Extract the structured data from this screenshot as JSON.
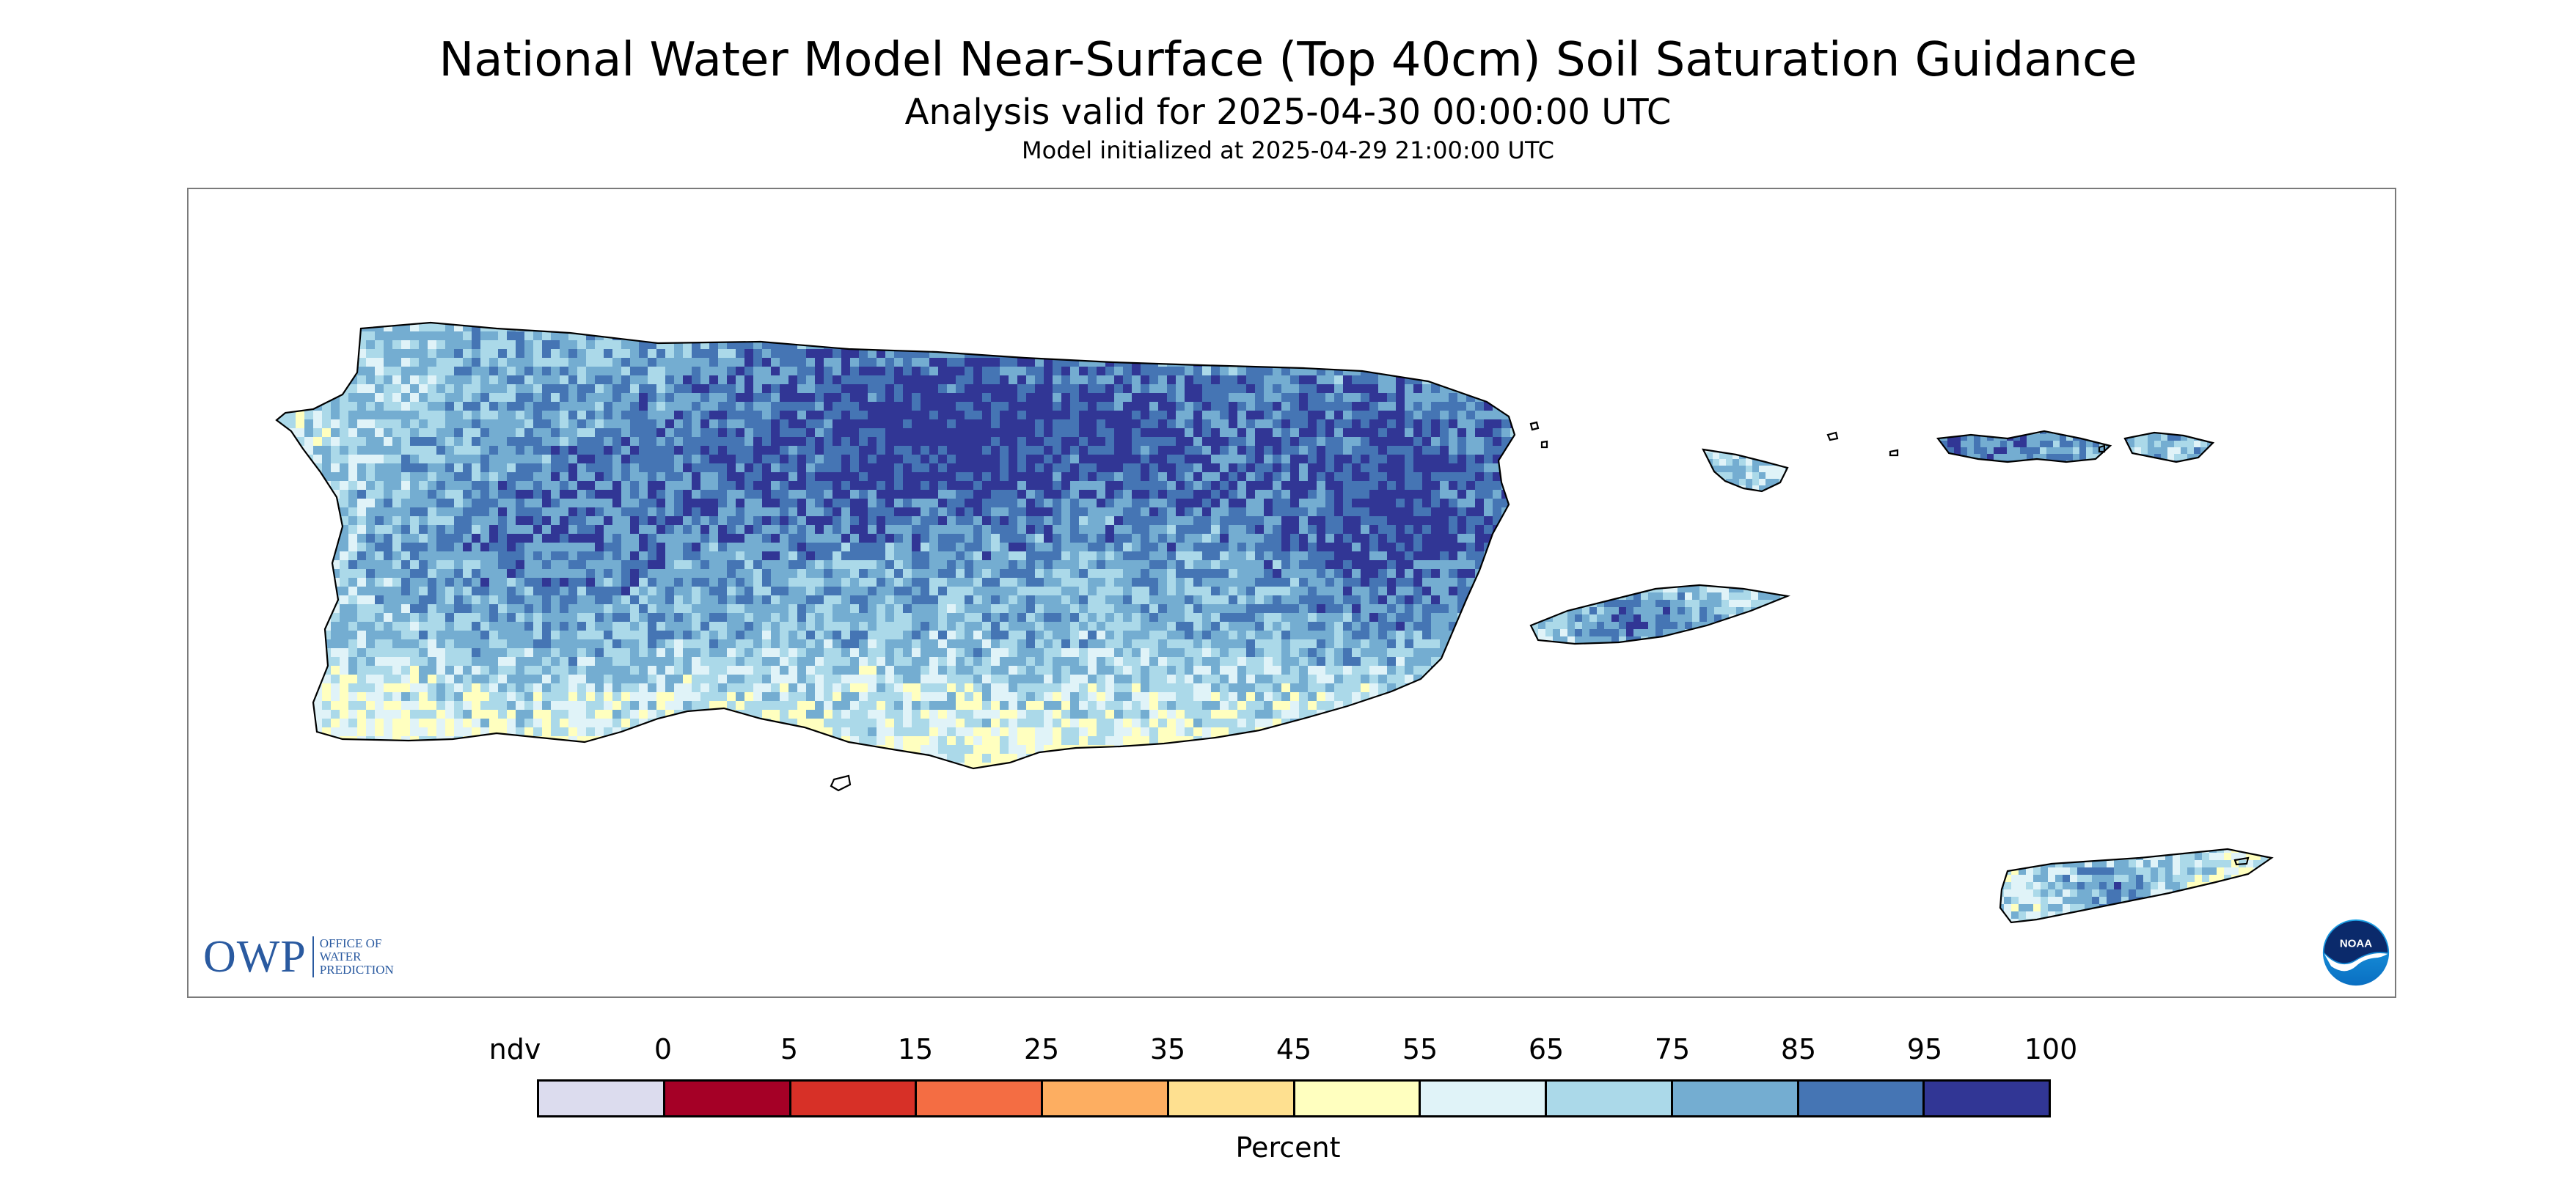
{
  "header": {
    "title": "National Water Model Near-Surface (Top 40cm) Soil Saturation Guidance",
    "subtitle": "Analysis valid for 2025-04-30 00:00:00 UTC",
    "init": "Model initialized at 2025-04-29 21:00:00 UTC"
  },
  "map": {
    "region_features": [
      "puerto-rico",
      "vieques",
      "culebra",
      "st-thomas",
      "st-john",
      "st-croix",
      "mona-island"
    ],
    "colors": {
      "ndv": "#dcdcee",
      "p0_5": "#a50026",
      "p5_15": "#d73027",
      "p15_25": "#f46d43",
      "p25_35": "#fdae61",
      "p35_45": "#fee090",
      "p45_55": "#ffffbf",
      "p55_65": "#e0f3f8",
      "p65_75": "#abd9e9",
      "p75_85": "#74add1",
      "p85_95": "#4575b4",
      "p95_100": "#313695"
    }
  },
  "logos": {
    "owp_mark": "OWP",
    "owp_line1": "OFFICE OF",
    "owp_line2": "WATER",
    "owp_line3": "PREDICTION",
    "noaa": "NOAA"
  },
  "legend": {
    "tick_labels": [
      "ndv",
      "0",
      "5",
      "15",
      "25",
      "35",
      "45",
      "55",
      "65",
      "75",
      "85",
      "95",
      "100"
    ],
    "swatch_colors": [
      "#dcdcee",
      "#a50026",
      "#d73027",
      "#f46d43",
      "#fdae61",
      "#fee090",
      "#ffffbf",
      "#e0f3f8",
      "#abd9e9",
      "#74add1",
      "#4575b4",
      "#313695"
    ],
    "label": "Percent"
  }
}
